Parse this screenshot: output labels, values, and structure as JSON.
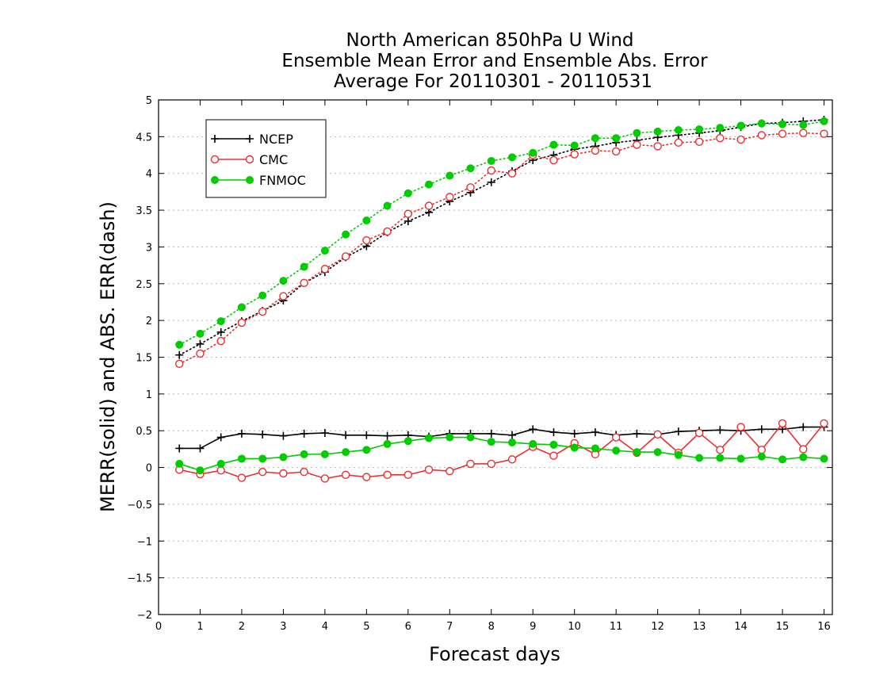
{
  "chart_data": {
    "type": "line",
    "title": [
      "North American 850hPa U Wind",
      "Ensemble Mean Error and Ensemble Abs. Error",
      "Average For 20110301 - 20110531"
    ],
    "xlabel": "Forecast days",
    "ylabel": "MERR(solid) and ABS. ERR(dash)",
    "xlim": [
      0,
      16.2
    ],
    "ylim": [
      -2,
      5
    ],
    "x_ticks": [
      "0",
      "1",
      "2",
      "3",
      "4",
      "5",
      "6",
      "7",
      "8",
      "9",
      "10",
      "11",
      "12",
      "13",
      "14",
      "15",
      "16"
    ],
    "y_ticks": [
      "5",
      "4.5",
      "4",
      "3.5",
      "3",
      "2.5",
      "2",
      "1.5",
      "1",
      "0.5",
      "0",
      "−0.5",
      "−1",
      "−1.5",
      "−2"
    ],
    "grid": true,
    "legend_position": "top-left",
    "x": [
      0.5,
      1.0,
      1.5,
      2.0,
      2.5,
      3.0,
      3.5,
      4.0,
      4.5,
      5.0,
      5.5,
      6.0,
      6.5,
      7.0,
      7.5,
      8.0,
      8.5,
      9.0,
      9.5,
      10.0,
      10.5,
      11.0,
      11.5,
      12.0,
      12.5,
      13.0,
      13.5,
      14.0,
      14.5,
      15.0,
      15.5,
      16.0
    ],
    "series": [
      {
        "name": "NCEP",
        "color": "#000000",
        "marker": "plus",
        "merr": [
          0.26,
          0.26,
          0.41,
          0.46,
          0.45,
          0.43,
          0.46,
          0.47,
          0.44,
          0.44,
          0.43,
          0.44,
          0.42,
          0.46,
          0.46,
          0.46,
          0.44,
          0.52,
          0.48,
          0.46,
          0.48,
          0.44,
          0.46,
          0.45,
          0.49,
          0.5,
          0.51,
          0.5,
          0.52,
          0.52,
          0.55,
          0.55
        ],
        "abs_err": [
          1.53,
          1.68,
          1.84,
          1.99,
          2.13,
          2.27,
          2.51,
          2.66,
          2.86,
          3.01,
          3.2,
          3.35,
          3.47,
          3.62,
          3.74,
          3.88,
          4.03,
          4.18,
          4.25,
          4.33,
          4.37,
          4.42,
          4.45,
          4.49,
          4.52,
          4.55,
          4.58,
          4.63,
          4.68,
          4.69,
          4.71,
          4.73
        ]
      },
      {
        "name": "CMC",
        "color": "#e83030",
        "marker": "open-circle",
        "merr": [
          -0.03,
          -0.09,
          -0.04,
          -0.14,
          -0.06,
          -0.08,
          -0.06,
          -0.15,
          -0.1,
          -0.13,
          -0.1,
          -0.1,
          -0.03,
          -0.05,
          0.05,
          0.05,
          0.11,
          0.28,
          0.16,
          0.33,
          0.18,
          0.41,
          0.2,
          0.45,
          0.2,
          0.47,
          0.24,
          0.55,
          0.24,
          0.6,
          0.25,
          0.6
        ],
        "abs_err": [
          1.41,
          1.55,
          1.72,
          1.97,
          2.12,
          2.33,
          2.51,
          2.7,
          2.87,
          3.09,
          3.21,
          3.45,
          3.56,
          3.68,
          3.81,
          4.04,
          4.0,
          4.25,
          4.18,
          4.26,
          4.31,
          4.3,
          4.39,
          4.37,
          4.42,
          4.43,
          4.48,
          4.46,
          4.52,
          4.54,
          4.55,
          4.54
        ]
      },
      {
        "name": "FNMOC",
        "color": "#00cc00",
        "marker": "filled-circle",
        "merr": [
          0.05,
          -0.04,
          0.05,
          0.12,
          0.12,
          0.14,
          0.18,
          0.18,
          0.21,
          0.24,
          0.32,
          0.36,
          0.4,
          0.41,
          0.41,
          0.35,
          0.34,
          0.32,
          0.31,
          0.27,
          0.26,
          0.23,
          0.21,
          0.21,
          0.17,
          0.13,
          0.13,
          0.12,
          0.15,
          0.11,
          0.14,
          0.12
        ],
        "abs_err": [
          1.67,
          1.82,
          1.99,
          2.18,
          2.34,
          2.54,
          2.73,
          2.95,
          3.17,
          3.36,
          3.56,
          3.73,
          3.85,
          3.97,
          4.07,
          4.17,
          4.22,
          4.28,
          4.39,
          4.38,
          4.48,
          4.48,
          4.55,
          4.57,
          4.59,
          4.6,
          4.62,
          4.65,
          4.68,
          4.67,
          4.66,
          4.71
        ]
      }
    ]
  }
}
